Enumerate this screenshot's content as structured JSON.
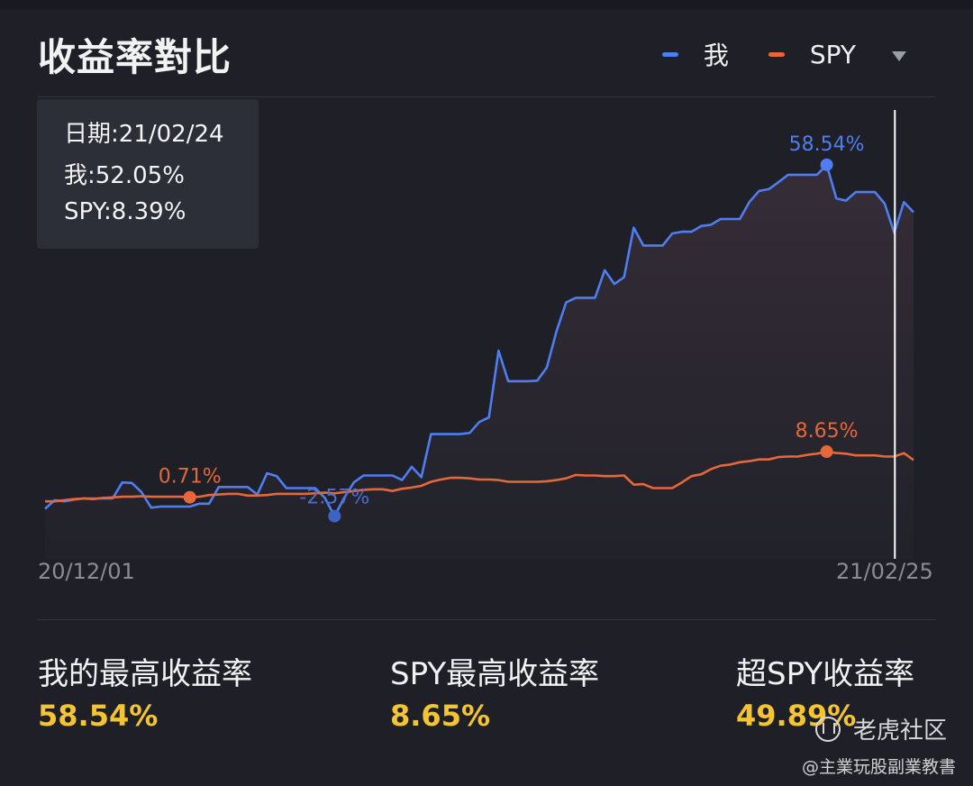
{
  "title": "收益率對比",
  "legend": [
    {
      "name": "我",
      "color": "#4e7ef0"
    },
    {
      "name": "SPY",
      "color": "#e5683a"
    }
  ],
  "tooltip": {
    "date": "日期:21/02/24",
    "mine": "我:52.05%",
    "spy": "SPY:8.39%"
  },
  "chart_data": {
    "type": "line",
    "x_range": [
      "20/12/01",
      "21/02/25"
    ],
    "ylim": [
      -10,
      64
    ],
    "grid": false,
    "xtick_labels": [
      "20/12/01",
      "21/02/25"
    ],
    "series": [
      {
        "name": "我",
        "color": "#4e7ef0",
        "values": [
          -1.3,
          0.2,
          0.0,
          0.3,
          0.5,
          0.5,
          0.5,
          0.5,
          3.3,
          3.2,
          1.6,
          -1.1,
          -0.9,
          -0.9,
          -0.9,
          -0.9,
          -0.4,
          -0.4,
          2.5,
          2.5,
          2.5,
          2.5,
          1.2,
          4.9,
          4.4,
          2.3,
          2.3,
          2.3,
          2.3,
          0.6,
          -2.57,
          0.6,
          3.3,
          4.5,
          4.5,
          4.5,
          4.5,
          3.7,
          6.0,
          4.2,
          11.7,
          11.7,
          11.7,
          11.7,
          11.9,
          13.8,
          14.6,
          26.2,
          20.9,
          20.9,
          20.9,
          21.0,
          23.3,
          29.6,
          34.6,
          35.4,
          35.4,
          35.4,
          40.2,
          37.8,
          39.0,
          47.6,
          44.5,
          44.5,
          44.5,
          46.6,
          46.9,
          46.9,
          47.9,
          48.1,
          49.1,
          49.1,
          49.1,
          52.1,
          54.0,
          54.3,
          55.5,
          56.8,
          56.8,
          56.8,
          56.8,
          58.54,
          52.7,
          52.3,
          53.8,
          53.8,
          53.8,
          51.8,
          46.7,
          52.05,
          50.3
        ],
        "peak": {
          "label": "58.54%",
          "value": 58.54,
          "index": 81
        },
        "trough": {
          "label": "-2.57%",
          "value": -2.57,
          "index": 30
        }
      },
      {
        "name": "SPY",
        "color": "#e5683a",
        "values": [
          0.0,
          0.0,
          0.2,
          0.4,
          0.5,
          0.4,
          0.6,
          0.7,
          0.8,
          0.8,
          0.9,
          0.8,
          0.8,
          0.8,
          0.8,
          0.71,
          0.8,
          1.1,
          1.2,
          1.3,
          1.3,
          1.0,
          1.0,
          1.1,
          1.3,
          1.3,
          1.3,
          1.3,
          1.4,
          1.5,
          1.4,
          1.6,
          1.8,
          2.0,
          2.1,
          2.1,
          1.8,
          2.2,
          2.4,
          2.7,
          3.4,
          3.8,
          4.1,
          4.1,
          4.0,
          3.8,
          3.8,
          3.7,
          3.4,
          3.4,
          3.4,
          3.4,
          3.5,
          3.7,
          4.0,
          4.6,
          4.5,
          4.5,
          4.4,
          4.4,
          4.5,
          2.9,
          3.0,
          2.3,
          2.3,
          2.3,
          3.3,
          4.4,
          4.7,
          5.6,
          6.2,
          6.4,
          6.8,
          7.0,
          7.3,
          7.3,
          7.7,
          7.8,
          7.8,
          8.1,
          8.3,
          8.65,
          8.4,
          8.3,
          8.0,
          8.0,
          8.0,
          7.8,
          7.8,
          8.39,
          7.2
        ]
      }
    ],
    "annotations": [
      {
        "series": "SPY",
        "index": 15,
        "label": "0.71%"
      },
      {
        "series": "SPY",
        "index": 81,
        "label": "8.65%"
      },
      {
        "series": "我",
        "index": 81,
        "label": "58.54%"
      },
      {
        "series": "我",
        "index": 30,
        "label": "-2.57%"
      }
    ],
    "crosshair_index": 89
  },
  "stats": [
    {
      "label": "我的最高收益率",
      "value": "58.54%"
    },
    {
      "label": "SPY最高收益率",
      "value": "8.65%"
    },
    {
      "label": "超SPY收益率",
      "value": "49.89%"
    }
  ],
  "watermark": "老虎社区",
  "credit": "@主業玩股副業教書"
}
